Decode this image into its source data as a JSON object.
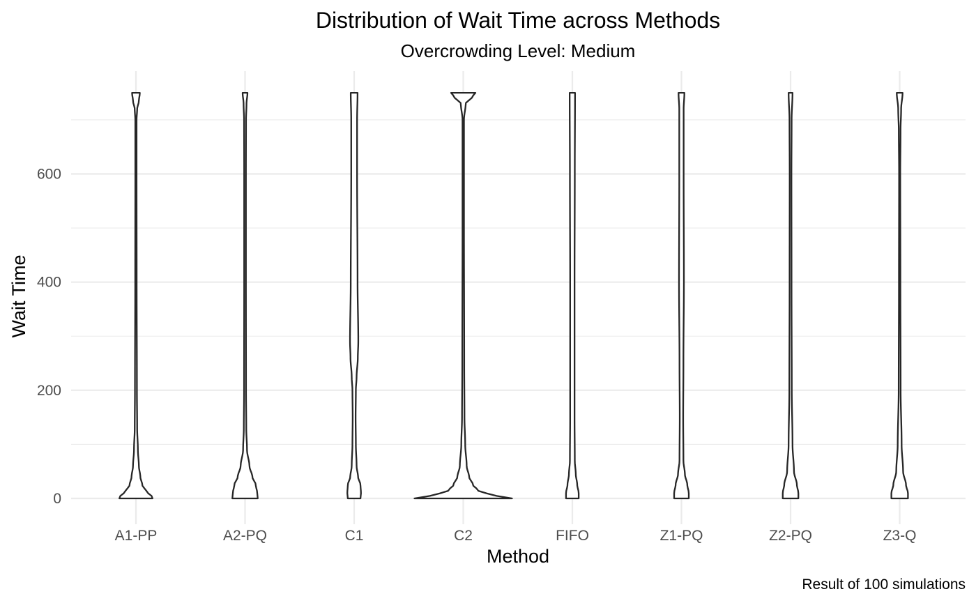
{
  "chart_data": {
    "type": "violin",
    "title": "Distribution of Wait Time across Methods",
    "subtitle": "Overcrowding Level: Medium",
    "xlabel": "Method",
    "ylabel": "Wait Time",
    "caption": "Result of 100 simulations",
    "categories": [
      "A1-PP",
      "A2-PQ",
      "C1",
      "C2",
      "FIFO",
      "Z1-PQ",
      "Z2-PQ",
      "Z3-Q"
    ],
    "ylim": [
      -38,
      790
    ],
    "yticks": [
      0,
      200,
      400,
      600
    ],
    "grid": true,
    "legend": "none",
    "line_color": "#262626",
    "fill_color": "#ffffff",
    "series": [
      {
        "category": "A1-PP",
        "profile": [
          [
            0,
            0.34
          ],
          [
            5,
            0.32
          ],
          [
            12,
            0.22
          ],
          [
            25,
            0.13
          ],
          [
            40,
            0.09
          ],
          [
            60,
            0.06
          ],
          [
            90,
            0.04
          ],
          [
            130,
            0.025
          ],
          [
            200,
            0.02
          ],
          [
            400,
            0.015
          ],
          [
            600,
            0.013
          ],
          [
            700,
            0.013
          ],
          [
            720,
            0.025
          ],
          [
            735,
            0.06
          ],
          [
            750,
            0.08
          ]
        ]
      },
      {
        "category": "A2-PQ",
        "profile": [
          [
            0,
            0.26
          ],
          [
            10,
            0.25
          ],
          [
            25,
            0.22
          ],
          [
            40,
            0.15
          ],
          [
            60,
            0.09
          ],
          [
            90,
            0.04
          ],
          [
            130,
            0.025
          ],
          [
            200,
            0.02
          ],
          [
            400,
            0.018
          ],
          [
            600,
            0.018
          ],
          [
            700,
            0.02
          ],
          [
            730,
            0.03
          ],
          [
            750,
            0.05
          ]
        ]
      },
      {
        "category": "C1",
        "profile": [
          [
            0,
            0.13
          ],
          [
            10,
            0.14
          ],
          [
            25,
            0.13
          ],
          [
            40,
            0.08
          ],
          [
            60,
            0.05
          ],
          [
            100,
            0.035
          ],
          [
            150,
            0.03
          ],
          [
            200,
            0.035
          ],
          [
            225,
            0.05
          ],
          [
            260,
            0.075
          ],
          [
            290,
            0.085
          ],
          [
            400,
            0.07
          ],
          [
            600,
            0.06
          ],
          [
            700,
            0.06
          ],
          [
            750,
            0.07
          ]
        ]
      },
      {
        "category": "C2",
        "profile": [
          [
            0,
            1.0
          ],
          [
            3,
            0.75
          ],
          [
            8,
            0.5
          ],
          [
            15,
            0.3
          ],
          [
            25,
            0.2
          ],
          [
            40,
            0.12
          ],
          [
            60,
            0.07
          ],
          [
            100,
            0.04
          ],
          [
            150,
            0.025
          ],
          [
            250,
            0.02
          ],
          [
            500,
            0.015
          ],
          [
            700,
            0.015
          ],
          [
            730,
            0.05
          ],
          [
            742,
            0.18
          ],
          [
            750,
            0.25
          ]
        ]
      },
      {
        "category": "FIFO",
        "profile": [
          [
            0,
            0.13
          ],
          [
            10,
            0.13
          ],
          [
            25,
            0.1
          ],
          [
            45,
            0.07
          ],
          [
            70,
            0.05
          ],
          [
            150,
            0.045
          ],
          [
            400,
            0.045
          ],
          [
            600,
            0.05
          ],
          [
            750,
            0.055
          ]
        ]
      },
      {
        "category": "Z1-PQ",
        "profile": [
          [
            0,
            0.15
          ],
          [
            10,
            0.15
          ],
          [
            25,
            0.12
          ],
          [
            45,
            0.07
          ],
          [
            70,
            0.04
          ],
          [
            150,
            0.035
          ],
          [
            250,
            0.04
          ],
          [
            400,
            0.05
          ],
          [
            600,
            0.045
          ],
          [
            720,
            0.045
          ],
          [
            750,
            0.06
          ]
        ]
      },
      {
        "category": "Z2-PQ",
        "profile": [
          [
            0,
            0.16
          ],
          [
            10,
            0.16
          ],
          [
            25,
            0.13
          ],
          [
            50,
            0.07
          ],
          [
            100,
            0.04
          ],
          [
            200,
            0.025
          ],
          [
            400,
            0.02
          ],
          [
            600,
            0.018
          ],
          [
            700,
            0.022
          ],
          [
            750,
            0.04
          ]
        ]
      },
      {
        "category": "Z3-Q",
        "profile": [
          [
            0,
            0.17
          ],
          [
            10,
            0.17
          ],
          [
            25,
            0.13
          ],
          [
            50,
            0.07
          ],
          [
            100,
            0.04
          ],
          [
            200,
            0.02
          ],
          [
            400,
            0.015
          ],
          [
            600,
            0.012
          ],
          [
            680,
            0.018
          ],
          [
            720,
            0.03
          ],
          [
            750,
            0.06
          ]
        ]
      }
    ]
  }
}
